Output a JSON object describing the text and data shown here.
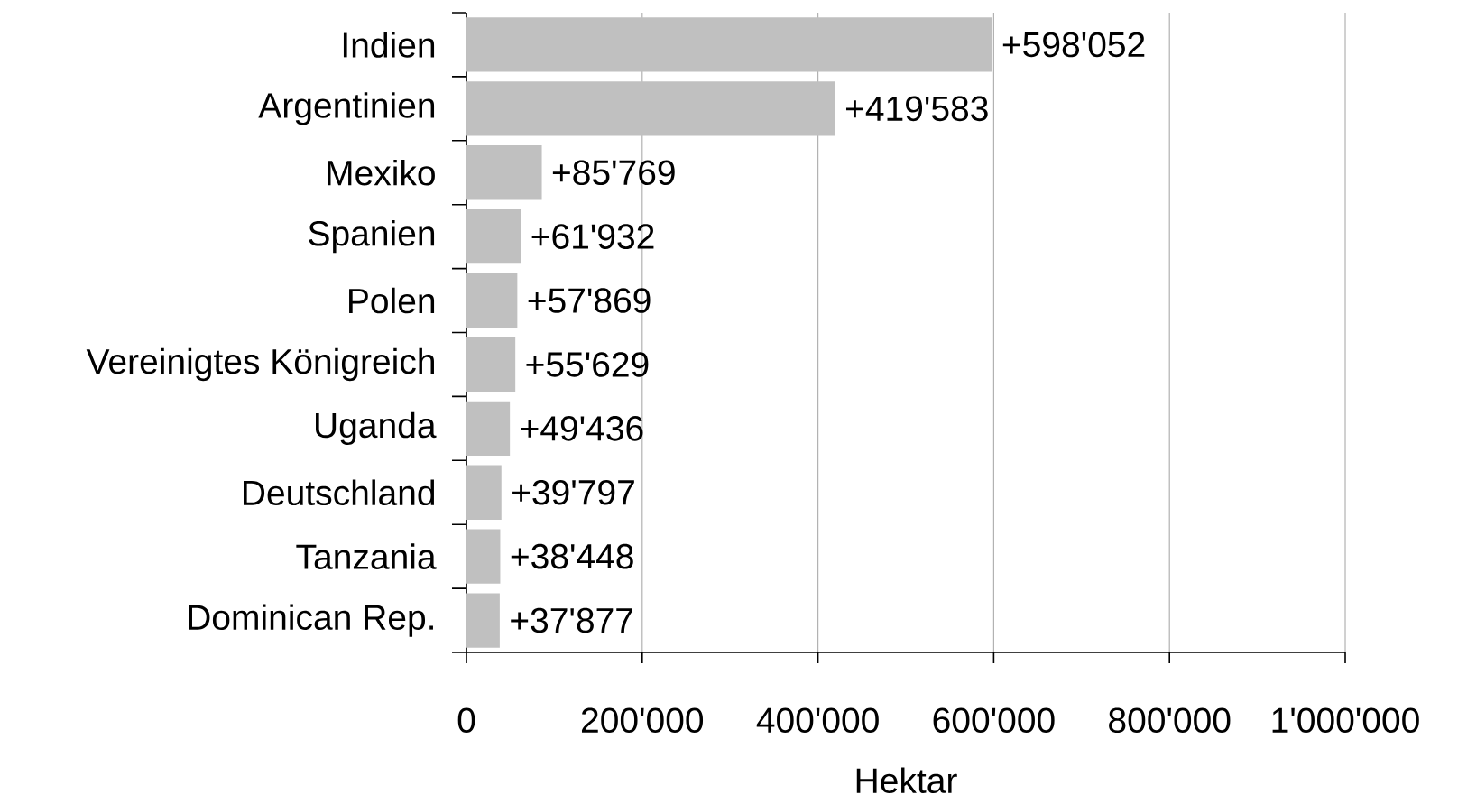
{
  "chart_data": {
    "type": "bar",
    "orientation": "horizontal",
    "xlabel": "Hektar",
    "categories": [
      "Indien",
      "Argentinien",
      "Mexiko",
      "Spanien",
      "Polen",
      "Vereinigtes Königreich",
      "Uganda",
      "Deutschland",
      "Tanzania",
      "Dominican Rep."
    ],
    "values": [
      598052,
      419583,
      85769,
      61932,
      57869,
      55629,
      49436,
      39797,
      38448,
      37877
    ],
    "value_labels": [
      "+598'052",
      "+419'583",
      "+85'769",
      "+61'932",
      "+57'869",
      "+55'629",
      "+49'436",
      "+39'797",
      "+38'448",
      "+37'877"
    ],
    "color": "#c0c0c0",
    "xlim": [
      0,
      1000000
    ],
    "xticks": [
      0,
      {
        "value": 200000,
        "label": "200'000"
      },
      {
        "value": 400000,
        "label": "400'000"
      },
      {
        "value": 600000,
        "label": "600'000"
      },
      {
        "value": 800000,
        "label": "800'000"
      },
      {
        "value": 1000000,
        "label": "1'000'000"
      }
    ],
    "grid": "x"
  }
}
